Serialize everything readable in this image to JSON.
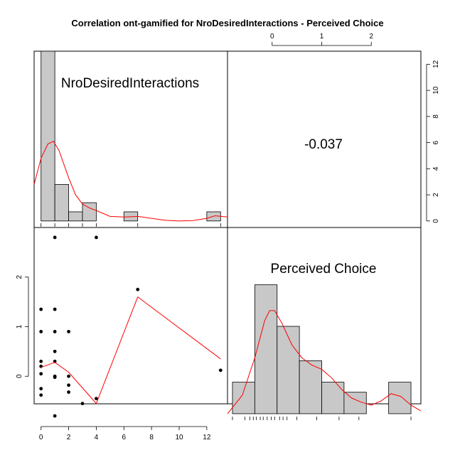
{
  "chart_data": {
    "type": "pairs",
    "title": "Correlation ont-gamified for NroDesiredInteractions - Perceived Choice",
    "variables": [
      "NroDesiredInteractions",
      "Perceived Choice"
    ],
    "correlation": "-0.037",
    "x_ticks": [
      "0",
      "2",
      "4",
      "6",
      "8",
      "10",
      "12"
    ],
    "y_ticks": [
      "0",
      "1",
      "2"
    ],
    "top_ticks": [
      "0",
      "1",
      "2"
    ],
    "right_ticks": [
      "0",
      "2",
      "4",
      "6",
      "8",
      "10",
      "12"
    ],
    "x_range": [
      -0.5,
      13.5
    ],
    "y_range": [
      -0.9,
      3.0
    ],
    "count_range": [
      -0.5,
      13.0
    ],
    "hist_nro": {
      "bins": [
        [
          0,
          1,
          13
        ],
        [
          1,
          2,
          2.8
        ],
        [
          2,
          3,
          0.7
        ],
        [
          3,
          4,
          1.4
        ],
        [
          6,
          7,
          0.7
        ],
        [
          12,
          13,
          0.7
        ]
      ],
      "rug": [
        0,
        1,
        2,
        3,
        4,
        7,
        13
      ],
      "density": [
        [
          -0.5,
          2.8
        ],
        [
          0,
          4.8
        ],
        [
          0.5,
          5.9
        ],
        [
          0.9,
          6.1
        ],
        [
          1.3,
          5.4
        ],
        [
          2,
          3.3
        ],
        [
          2.5,
          2.0
        ],
        [
          3,
          1.3
        ],
        [
          3.5,
          1.0
        ],
        [
          4,
          0.8
        ],
        [
          5,
          0.35
        ],
        [
          6,
          0.3
        ],
        [
          7,
          0.35
        ],
        [
          8,
          0.2
        ],
        [
          9,
          0.05
        ],
        [
          10,
          0.0
        ],
        [
          11,
          0.03
        ],
        [
          12,
          0.2
        ],
        [
          12.6,
          0.4
        ],
        [
          13.5,
          0.3
        ]
      ]
    },
    "hist_choice": {
      "bins": [
        [
          -0.8,
          -0.35,
          2.2
        ],
        [
          -0.35,
          0.1,
          9.0
        ],
        [
          0.1,
          0.55,
          6.1
        ],
        [
          0.55,
          1.0,
          3.7
        ],
        [
          1.0,
          1.45,
          2.2
        ],
        [
          1.45,
          1.9,
          1.5
        ],
        [
          1.9,
          2.35,
          0.0
        ],
        [
          2.35,
          2.8,
          2.2
        ]
      ],
      "rug": [
        -0.8,
        -0.55,
        -0.45,
        -0.38,
        -0.32,
        -0.24,
        -0.18,
        -0.1,
        -0.02,
        0.05,
        0.15,
        0.22,
        0.3,
        0.5,
        0.9,
        1.35,
        1.75,
        2.8
      ],
      "density": [
        [
          -0.9,
          0.0
        ],
        [
          -0.6,
          1.3
        ],
        [
          -0.35,
          3.9
        ],
        [
          -0.15,
          6.5
        ],
        [
          -0.05,
          7.2
        ],
        [
          0.05,
          7.2
        ],
        [
          0.2,
          6.3
        ],
        [
          0.4,
          4.8
        ],
        [
          0.6,
          3.9
        ],
        [
          0.8,
          3.4
        ],
        [
          1.0,
          3.1
        ],
        [
          1.2,
          2.5
        ],
        [
          1.4,
          1.7
        ],
        [
          1.6,
          1.1
        ],
        [
          1.8,
          0.8
        ],
        [
          2.0,
          0.6
        ],
        [
          2.2,
          0.9
        ],
        [
          2.4,
          1.4
        ],
        [
          2.6,
          1.2
        ],
        [
          2.8,
          0.6
        ],
        [
          3.0,
          0.2
        ]
      ]
    },
    "scatter": [
      [
        0,
        1.35
      ],
      [
        0,
        0.9
      ],
      [
        0,
        0.3
      ],
      [
        0,
        0.2
      ],
      [
        0,
        0.05
      ],
      [
        0,
        -0.25
      ],
      [
        0,
        -0.38
      ],
      [
        1,
        2.8
      ],
      [
        1,
        1.35
      ],
      [
        1,
        0.9
      ],
      [
        1,
        0.5
      ],
      [
        1,
        0.3
      ],
      [
        1,
        0.0
      ],
      [
        1,
        -0.02
      ],
      [
        1,
        -0.8
      ],
      [
        2,
        0.9
      ],
      [
        2,
        0.0
      ],
      [
        2,
        -0.18
      ],
      [
        2,
        -0.32
      ],
      [
        3,
        -0.55
      ],
      [
        4,
        2.8
      ],
      [
        4,
        -0.45
      ],
      [
        7,
        1.75
      ],
      [
        13,
        0.12
      ]
    ],
    "smooth": [
      [
        0,
        0.18
      ],
      [
        1,
        0.28
      ],
      [
        2,
        0.08
      ],
      [
        4,
        -0.55
      ],
      [
        7,
        1.6
      ],
      [
        13,
        0.35
      ]
    ],
    "colors": {
      "bar_fill": "#c8c8c8",
      "density": "#ff0000",
      "points": "#000000"
    }
  }
}
